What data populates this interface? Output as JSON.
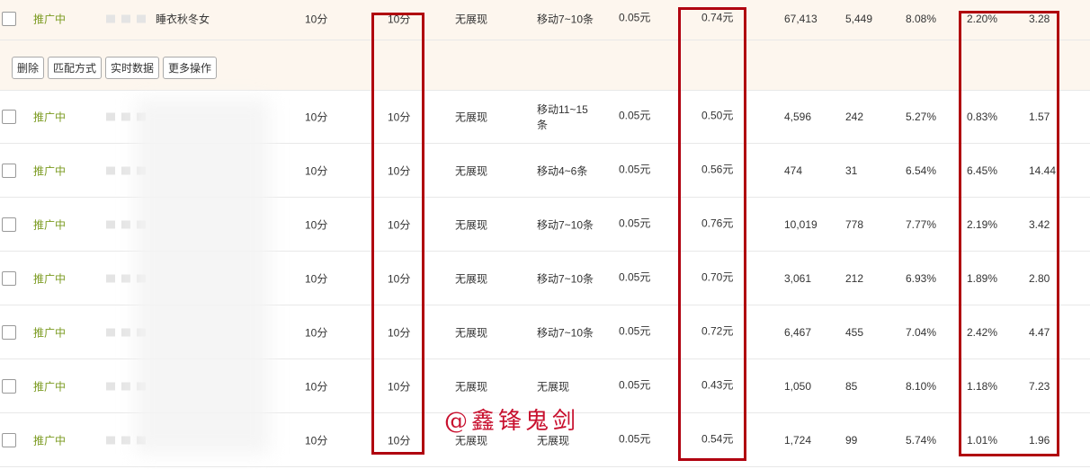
{
  "table": {
    "actions": [
      "删除",
      "匹配方式",
      "实时数据",
      "更多操作"
    ],
    "rows": [
      {
        "status": "推广中",
        "keyword": "睡衣秋冬女",
        "cells": [
          "10分",
          "10分",
          "无展现",
          "移动7~10条",
          "0.05元",
          "0.74元",
          "67,413",
          "5,449",
          "8.08%",
          "2.20%",
          "3.28"
        ]
      },
      {
        "status": "推广中",
        "cells": [
          "10分",
          "10分",
          "无展现",
          "移动11~15条",
          "0.05元",
          "0.50元",
          "4,596",
          "242",
          "5.27%",
          "0.83%",
          "1.57"
        ]
      },
      {
        "status": "推广中",
        "cells": [
          "10分",
          "10分",
          "无展现",
          "移动4~6条",
          "0.05元",
          "0.56元",
          "474",
          "31",
          "6.54%",
          "6.45%",
          "14.44"
        ]
      },
      {
        "status": "推广中",
        "cells": [
          "10分",
          "10分",
          "无展现",
          "移动7~10条",
          "0.05元",
          "0.76元",
          "10,019",
          "778",
          "7.77%",
          "2.19%",
          "3.42"
        ]
      },
      {
        "status": "推广中",
        "cells": [
          "10分",
          "10分",
          "无展现",
          "移动7~10条",
          "0.05元",
          "0.70元",
          "3,061",
          "212",
          "6.93%",
          "1.89%",
          "2.80"
        ]
      },
      {
        "status": "推广中",
        "cells": [
          "10分",
          "10分",
          "无展现",
          "移动7~10条",
          "0.05元",
          "0.72元",
          "6,467",
          "455",
          "7.04%",
          "2.42%",
          "4.47"
        ]
      },
      {
        "status": "推广中",
        "cells": [
          "10分",
          "10分",
          "无展现",
          "无展现",
          "0.05元",
          "0.43元",
          "1,050",
          "85",
          "8.10%",
          "1.18%",
          "7.23"
        ]
      },
      {
        "status": "推广中",
        "cells": [
          "10分",
          "10分",
          "无展现",
          "无展现",
          "0.05元",
          "0.54元",
          "1,724",
          "99",
          "5.74%",
          "1.01%",
          "1.96"
        ]
      }
    ]
  },
  "watermark": "@鑫锋鬼剑"
}
